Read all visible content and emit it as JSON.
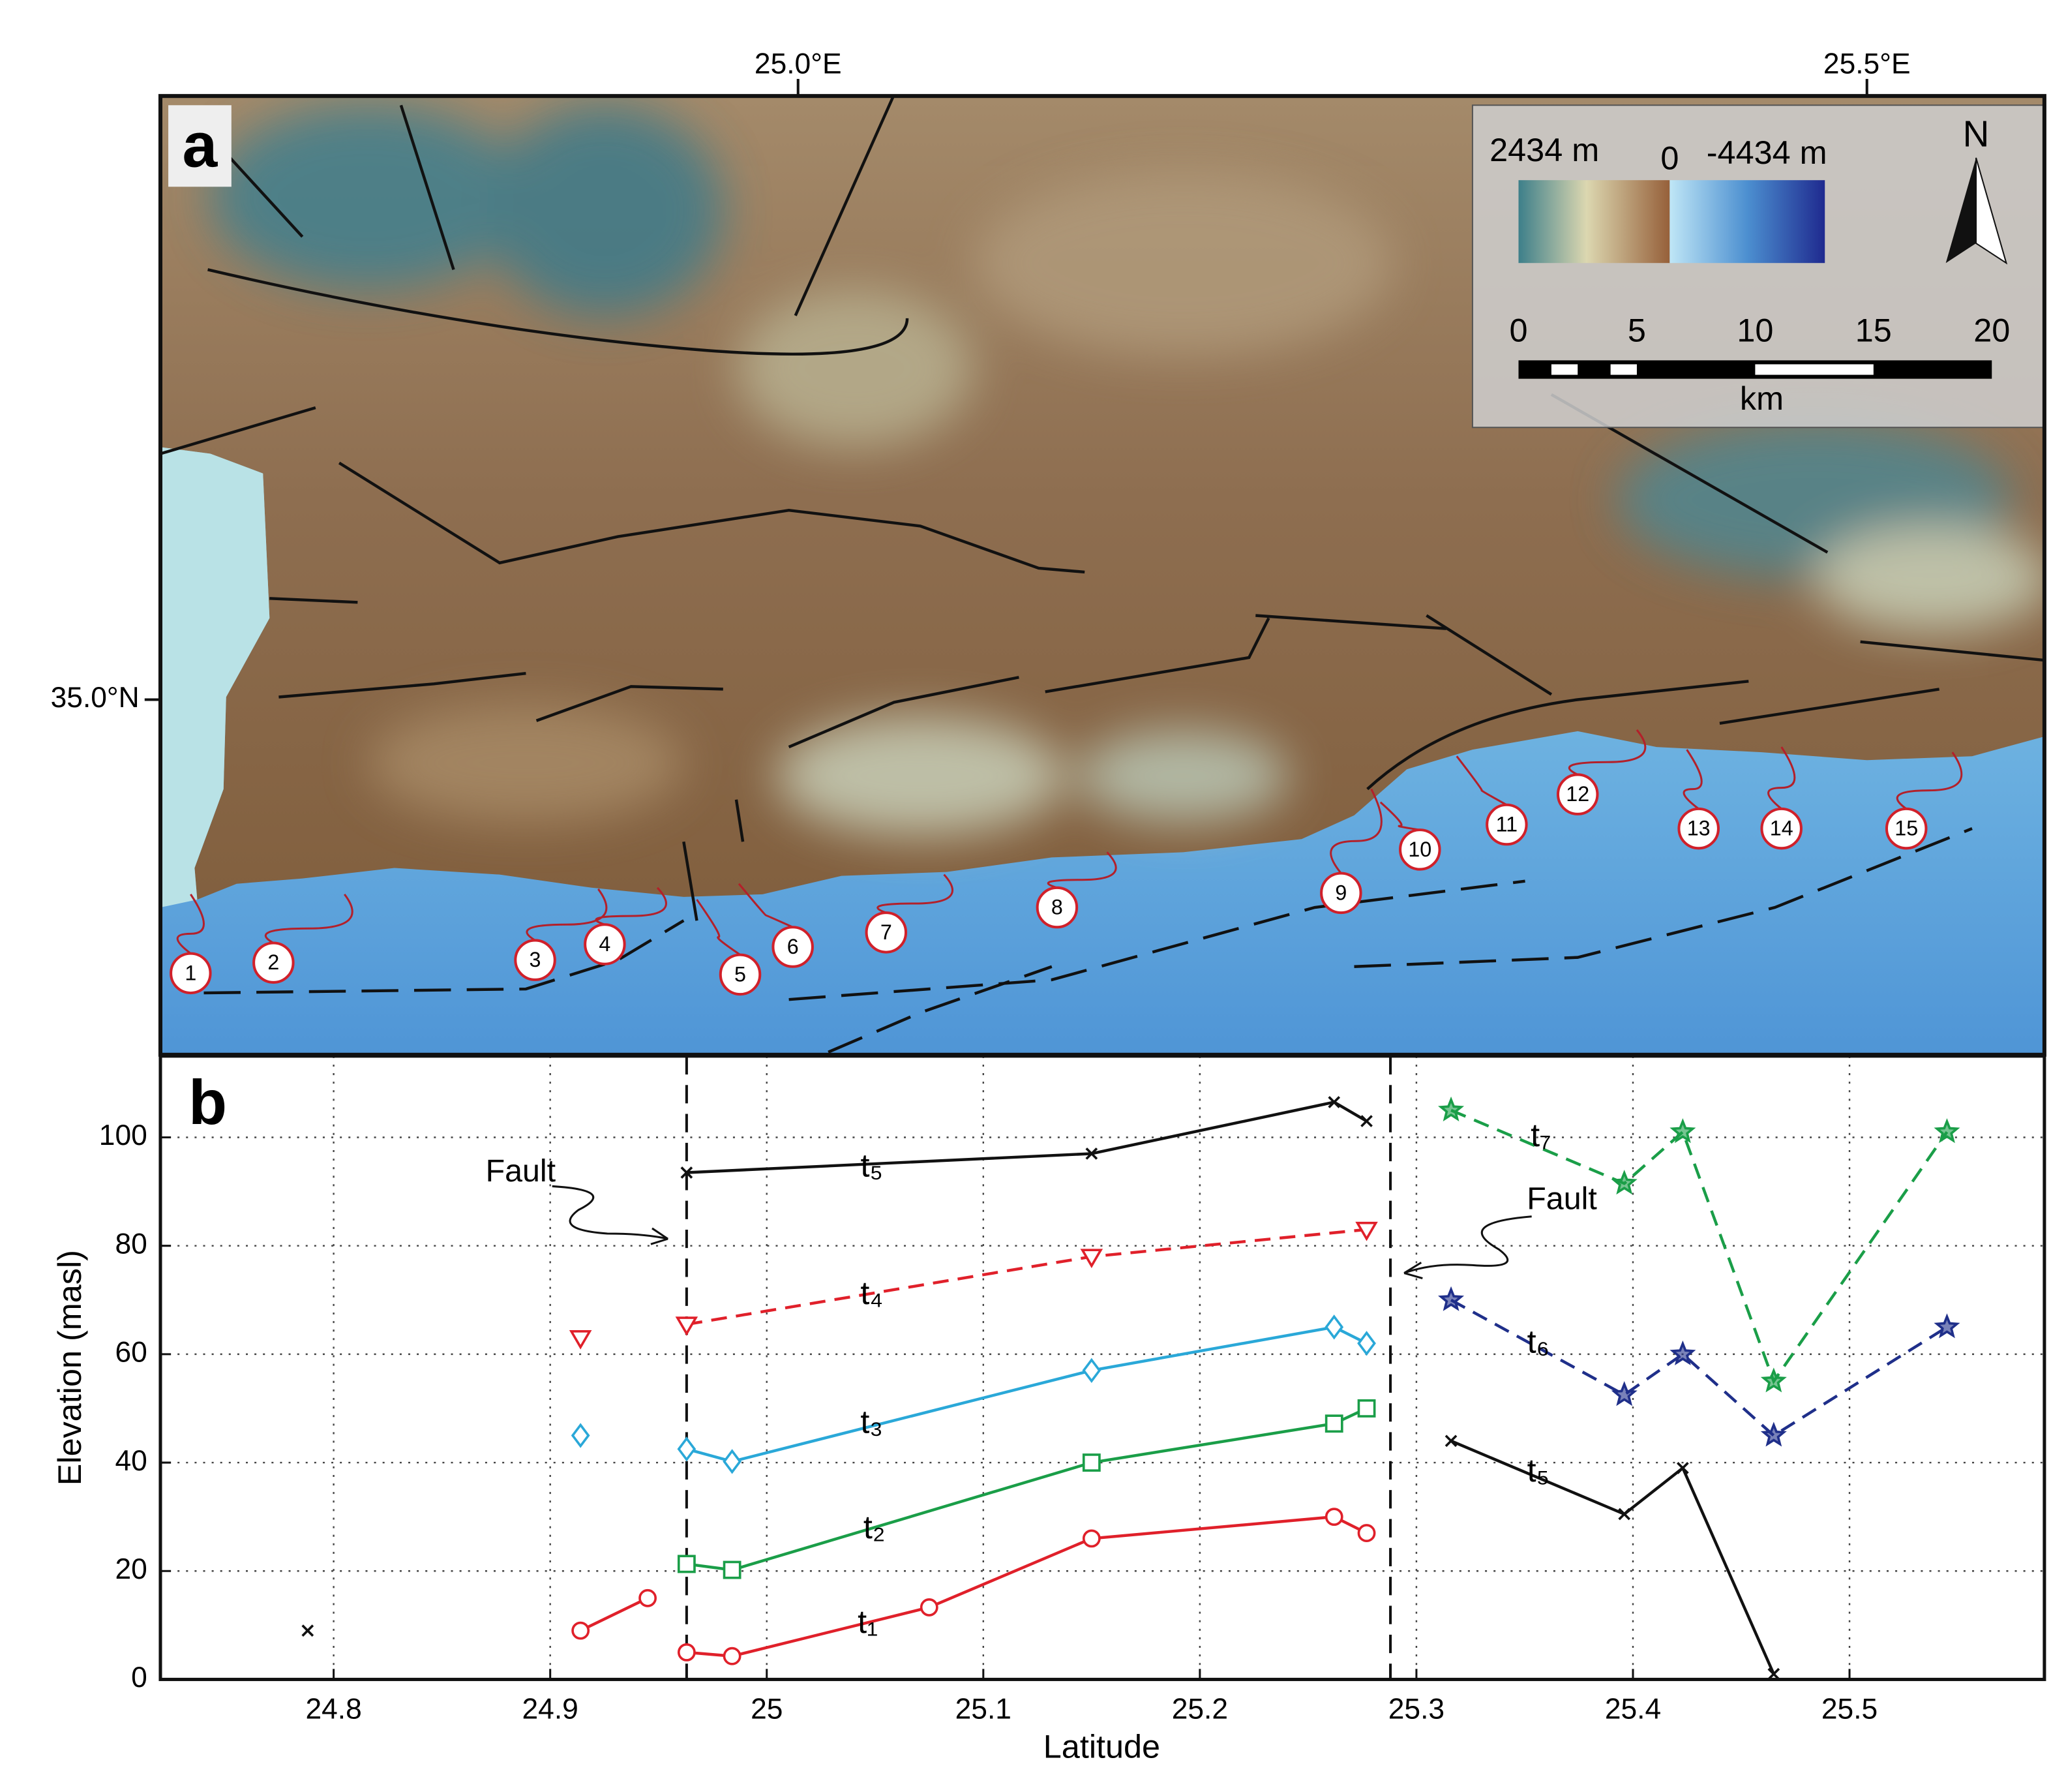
{
  "map": {
    "panel_label": "a",
    "lon_labels": [
      "25.0°E",
      "25.5°E"
    ],
    "lat_labels": [
      "35.0°N"
    ],
    "legend": {
      "max_label": "2434 m",
      "zero_label": "0",
      "min_label": "-4434 m",
      "north": "N"
    },
    "scale": {
      "ticks": [
        "0",
        "5",
        "10",
        "15",
        "20"
      ],
      "unit": "km"
    },
    "sites": [
      "1",
      "2",
      "3",
      "4",
      "5",
      "6",
      "7",
      "8",
      "9",
      "10",
      "11",
      "12",
      "13",
      "14",
      "15"
    ]
  },
  "chart_data": {
    "type": "line",
    "panel_label": "b",
    "x_label": "Latitude",
    "y_label": "Elevation (masl)",
    "xlim": [
      24.72,
      25.59
    ],
    "ylim": [
      0,
      115
    ],
    "xticks": [
      24.8,
      24.9,
      25,
      25.1,
      25.2,
      25.3,
      25.4,
      25.5
    ],
    "yticks": [
      0,
      20,
      40,
      60,
      80,
      100
    ],
    "grid": true,
    "fault_lines": [
      24.963,
      25.288
    ],
    "annotations": [
      "Fault",
      "Fault"
    ],
    "series": [
      {
        "name": "t₁",
        "color": "#e0202a",
        "marker": "circle",
        "line": "solid",
        "x": [
          24.914,
          24.945,
          null,
          24.963,
          24.984,
          25.075,
          25.15,
          25.262,
          25.277
        ],
        "values": [
          9,
          15,
          null,
          5,
          4.3,
          13.3,
          26,
          30,
          27
        ]
      },
      {
        "name": "t₂",
        "color": "#1a9e48",
        "marker": "square",
        "line": "solid",
        "x": [
          24.963,
          24.984,
          25.15,
          25.262,
          25.277
        ],
        "values": [
          21.3,
          20.2,
          40,
          47.2,
          50
        ]
      },
      {
        "name": "t₃",
        "color": "#2aa8d8",
        "marker": "diamond",
        "line": "solid",
        "x": [
          24.914,
          null,
          24.963,
          24.984,
          25.15,
          25.262,
          25.277
        ],
        "values": [
          45,
          null,
          42.5,
          40.2,
          57,
          65,
          62
        ]
      },
      {
        "name": "t₄",
        "color": "#e0202a",
        "marker": "triangle",
        "line": "dashed",
        "x": [
          24.914,
          null,
          24.963,
          25.15,
          25.277
        ],
        "values": [
          63,
          null,
          65.5,
          78,
          83
        ]
      },
      {
        "name": "t₅",
        "color": "#111111",
        "marker": "x",
        "line": "solid",
        "x": [
          24.788,
          null,
          24.963,
          25.15,
          25.262,
          25.277
        ],
        "values": [
          9,
          null,
          93.5,
          97,
          106.5,
          103
        ]
      },
      {
        "name": "t₅",
        "color": "#111111",
        "marker": "x",
        "line": "solid",
        "x": [
          25.316,
          25.396,
          25.423,
          25.465
        ],
        "values": [
          44,
          30.5,
          39,
          1
        ]
      },
      {
        "name": "t₆",
        "color": "#1f2f8a",
        "marker": "star",
        "line": "dashed",
        "x": [
          25.316,
          25.396,
          25.423,
          25.465,
          25.545
        ],
        "values": [
          70,
          52.5,
          60,
          45,
          65
        ]
      },
      {
        "name": "t₇",
        "color": "#1a9e48",
        "marker": "star",
        "line": "dashed",
        "x": [
          25.316,
          25.396,
          25.423,
          25.465,
          25.545
        ],
        "values": [
          105,
          91.5,
          101,
          55,
          101
        ]
      }
    ]
  }
}
